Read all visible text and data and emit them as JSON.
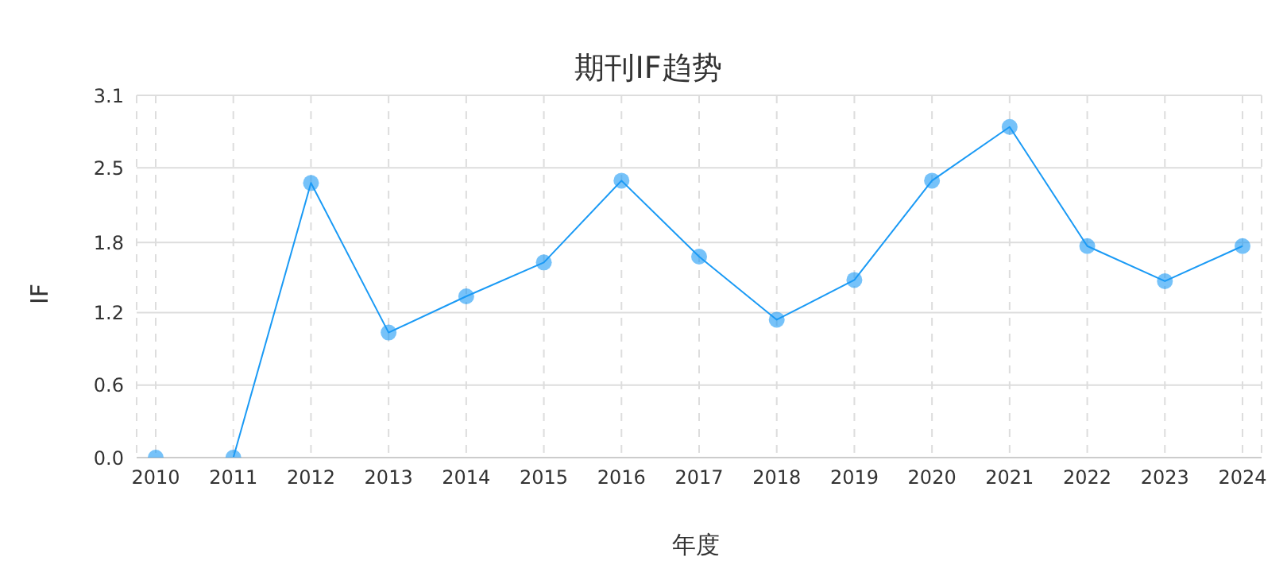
{
  "chart_data": {
    "type": "line",
    "title": "期刊IF趋势",
    "xlabel": "年度",
    "ylabel": "IF",
    "categories": [
      "2010",
      "2011",
      "2012",
      "2013",
      "2014",
      "2015",
      "2016",
      "2017",
      "2018",
      "2019",
      "2020",
      "2021",
      "2022",
      "2023",
      "2024"
    ],
    "series": [
      {
        "color": "#1a9af5",
        "values": [
          0,
          0,
          2.35,
          1.07,
          1.38,
          1.67,
          2.37,
          1.72,
          1.18,
          1.52,
          2.37,
          2.83,
          1.81,
          1.51,
          1.81
        ]
      }
    ],
    "ylim": [
      0,
      3.1
    ],
    "yticks": [
      {
        "value": 0,
        "label": "0.0"
      },
      {
        "value": 0.62,
        "label": "0.6"
      },
      {
        "value": 1.24,
        "label": "1.2"
      },
      {
        "value": 1.84,
        "label": "1.8"
      },
      {
        "value": 2.48,
        "label": "2.5"
      },
      {
        "value": 3.1,
        "label": "3.1"
      }
    ],
    "grid": true,
    "marker": "circle",
    "line_style": "solid",
    "legend": false
  }
}
